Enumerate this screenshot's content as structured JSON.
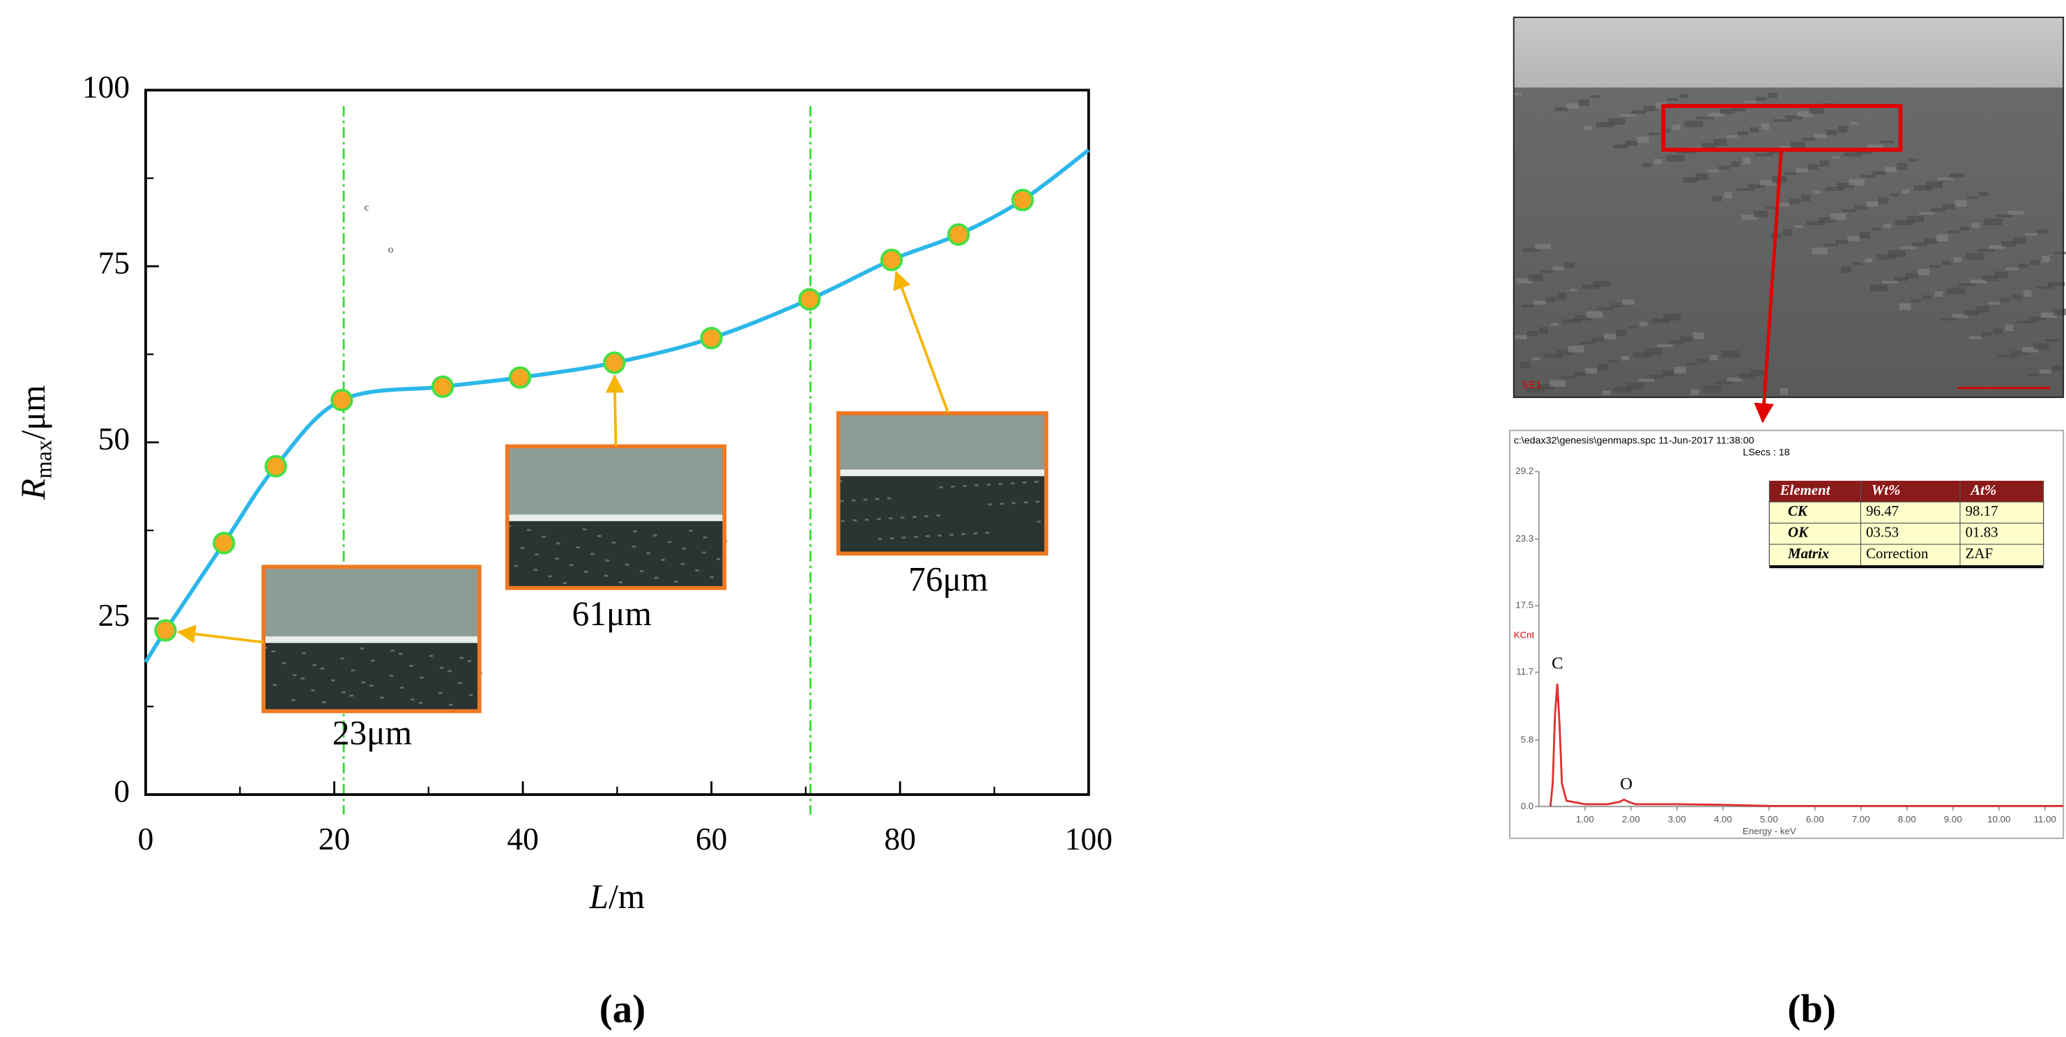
{
  "chart_data": [
    {
      "type": "line",
      "panel_label": "(a)",
      "xlabel_parts": [
        "L",
        "/m"
      ],
      "ylabel_parts": [
        "R",
        "max",
        "/μm"
      ],
      "xlim": [
        0,
        100
      ],
      "ylim": [
        0,
        100
      ],
      "xticks": [
        0,
        20,
        40,
        60,
        80,
        100
      ],
      "yticks": [
        0,
        25,
        50,
        75,
        100
      ],
      "xminor": [
        10,
        30,
        50,
        70,
        90
      ],
      "yminor": [
        12.5,
        37.5,
        62.5,
        87.5
      ],
      "vlines": [
        21,
        70.5
      ],
      "vline_color": "#33dd33",
      "series": [
        {
          "color": "#2bb7ea",
          "marker": false,
          "x": [
            0,
            2.1,
            8.3,
            13.8,
            20.8,
            31.5,
            39.7,
            49.7,
            60.0,
            70.4,
            79.1,
            86.2,
            93.0,
            100
          ],
          "values": [
            18.8,
            23.3,
            35.7,
            46.6,
            56.0,
            57.9,
            59.2,
            61.3,
            64.8,
            70.3,
            75.9,
            79.5,
            84.4,
            91.5
          ]
        },
        {
          "color": "#f5a623",
          "marker": true,
          "x": [
            2.1,
            8.3,
            13.8,
            20.8,
            31.5,
            39.7,
            49.7,
            60.0,
            70.4,
            79.1,
            86.2,
            93.0
          ],
          "values": [
            23.3,
            35.7,
            46.6,
            56.0,
            57.9,
            59.2,
            61.3,
            64.8,
            70.3,
            75.9,
            79.5,
            84.4
          ]
        }
      ],
      "annotations": [
        "23μm",
        "61μm",
        "76μm"
      ],
      "notes": [
        "c",
        "o"
      ]
    },
    {
      "type": "line",
      "panel_label": "(b)",
      "image_label": "SE1",
      "header": "c:\\edax32\\genesis\\genmaps.spc 11-Jun-2017 11:38:00",
      "subheader": "LSecs : 18",
      "ylabel": "KCnt",
      "xlabel": "Energy - keV",
      "xlim": [
        0,
        11.4
      ],
      "ylim": [
        0,
        29.2
      ],
      "xticks": [
        {
          "value": 1,
          "label": "1.00"
        },
        {
          "value": 2,
          "label": "2.00"
        },
        {
          "value": 3,
          "label": "3.00"
        },
        {
          "value": 4,
          "label": "4.00"
        },
        {
          "value": 5,
          "label": "5.00"
        },
        {
          "value": 6,
          "label": "6.00"
        },
        {
          "value": 7,
          "label": "7.00"
        },
        {
          "value": 8,
          "label": "8.00"
        },
        {
          "value": 9,
          "label": "9.00"
        },
        {
          "value": 10,
          "label": "10.00"
        },
        {
          "value": 11,
          "label": "11.00"
        }
      ],
      "yticks": [
        {
          "value": 0,
          "label": "0.0"
        },
        5.8,
        11.7,
        17.5,
        23.3,
        29.2
      ],
      "series": [
        {
          "color": "#e03030",
          "marker": false,
          "x": [
            0.25,
            0.3,
            0.35,
            0.4,
            0.45,
            0.5,
            0.6,
            1.0,
            1.5,
            1.75,
            1.85,
            1.95,
            2.1,
            3.0,
            4.0,
            5.0,
            11.4
          ],
          "values": [
            0,
            2,
            8,
            10.7,
            7,
            2,
            0.5,
            0.2,
            0.2,
            0.4,
            0.6,
            0.4,
            0.2,
            0.2,
            0.15,
            0.05,
            0.05
          ]
        }
      ],
      "annotations": [
        "C",
        "O"
      ],
      "table": {
        "header": [
          "Element",
          "Wt%",
          "At%"
        ],
        "rows": [
          [
            "CK",
            "96.47",
            "98.17"
          ],
          [
            "OK",
            "03.53",
            "01.83"
          ],
          [
            "Matrix",
            "Correction",
            "ZAF"
          ]
        ]
      }
    }
  ]
}
